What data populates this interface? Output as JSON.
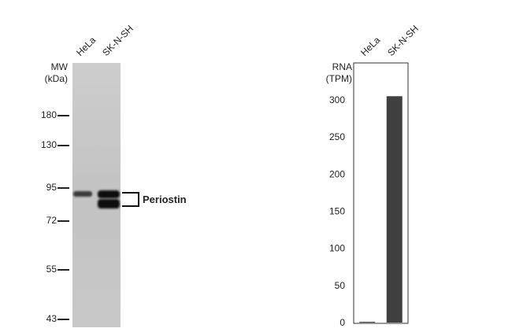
{
  "western_blot": {
    "mw_title": "MW",
    "mw_unit": "(kDa)",
    "lanes": [
      "HeLa",
      "SK-N-SH"
    ],
    "markers": [
      {
        "label": "180",
        "kda": 180
      },
      {
        "label": "130",
        "kda": 130
      },
      {
        "label": "95",
        "kda": 95
      },
      {
        "label": "72",
        "kda": 72
      },
      {
        "label": "55",
        "kda": 55
      },
      {
        "label": "43",
        "kda": 43
      }
    ],
    "band_label": "Periostin",
    "colors": {
      "membrane": "#c4c4c4",
      "band": "#111111"
    }
  },
  "chart_data": {
    "type": "bar",
    "title": "",
    "ylabel_line1": "RNA",
    "ylabel_line2": "(TPM)",
    "categories": [
      "HeLa",
      "SK-N-SH"
    ],
    "values": [
      1,
      305
    ],
    "ylim": [
      0,
      300
    ],
    "yticks": [
      0,
      50,
      100,
      150,
      200,
      250,
      300
    ],
    "grid": false,
    "bar_color": "#404040"
  }
}
